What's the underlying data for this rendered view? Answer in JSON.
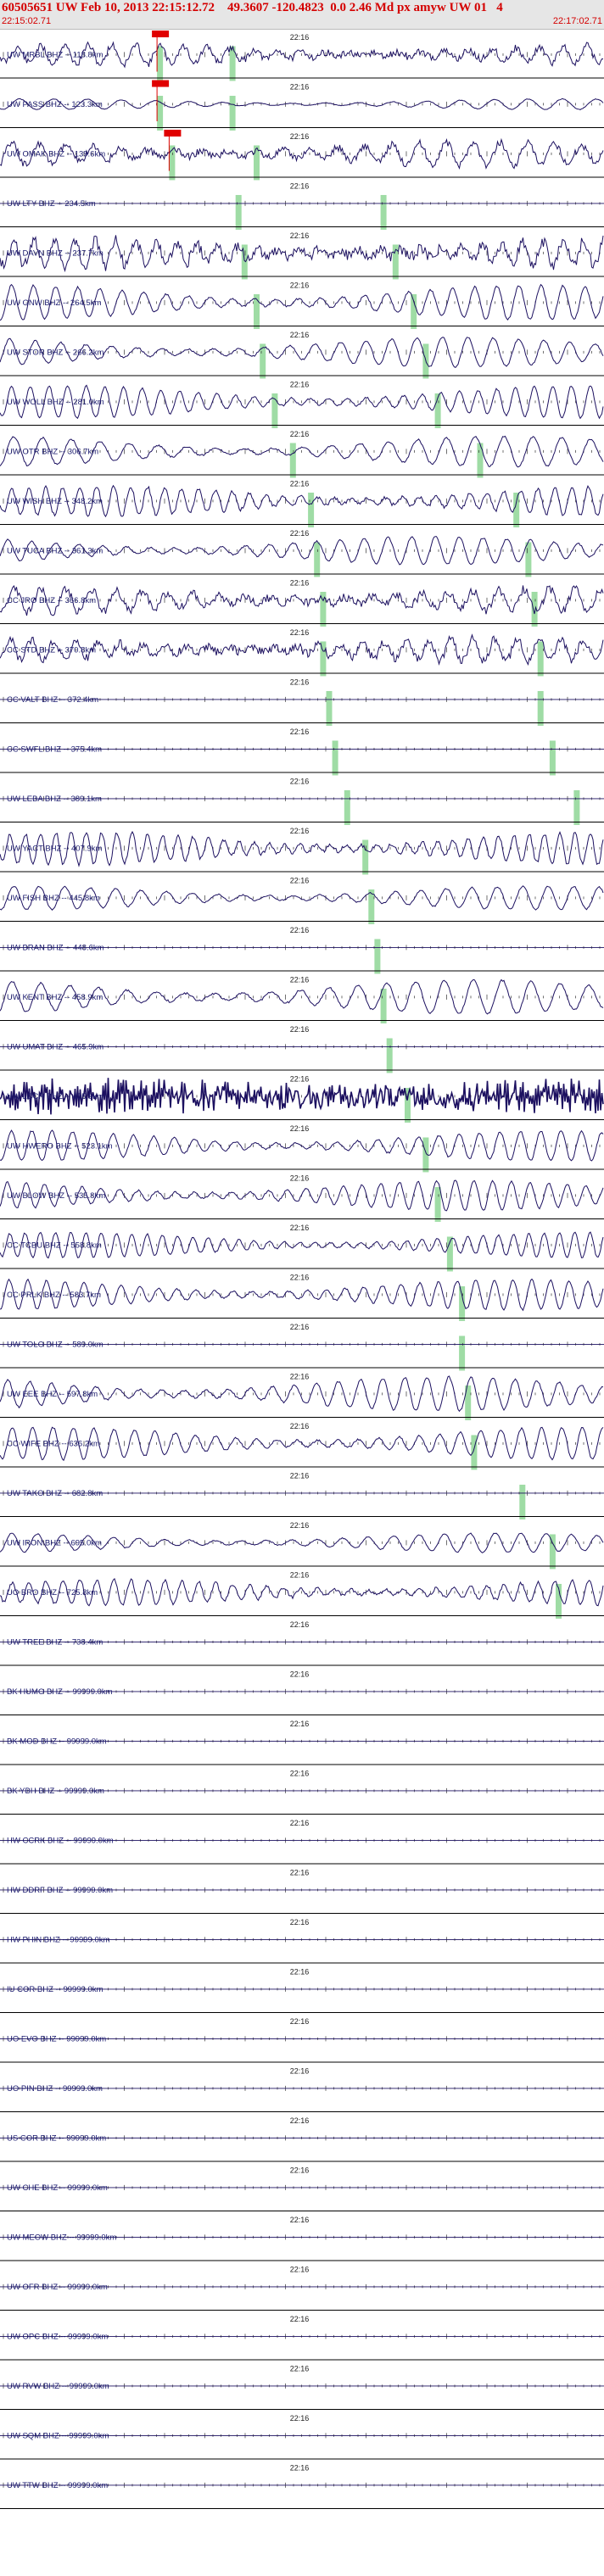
{
  "header": {
    "title": "60505651 UW Feb 10, 2013 22:15:12.72    49.3607 -120.4823  0.0 2.46 Md px amyw UW 01   4",
    "start_time": "22:15:02.71",
    "end_time": "22:17:02.71"
  },
  "time_tick_label": "22:16",
  "colors": {
    "header_text": "#d40000",
    "trace": "#1c1060",
    "pick_band": "#9fdca5",
    "pick_marker": "#e00000",
    "separator": "#000000"
  },
  "traces": [
    {
      "label": "UW MRBL BHZ -- 118.8km",
      "amp": 0.45,
      "period": 28,
      "noise": 0.6,
      "phase": 0.2,
      "picks": [
        0.26,
        0.38
      ]
    },
    {
      "label": "UW PASS BHZ -- 123.3km",
      "amp": 0.25,
      "period": 40,
      "noise": 0.1,
      "phase": 1.1,
      "picks": [
        0.26,
        0.38
      ]
    },
    {
      "label": "UW OMAK BHZ -- 139.6km",
      "amp": 0.55,
      "period": 32,
      "noise": 0.5,
      "phase": 2.0,
      "picks": [
        0.28,
        0.42
      ]
    },
    {
      "label": "UW LTY BHZ -- 234.5km",
      "amp": 0.0,
      "period": 40,
      "noise": 0.0,
      "phase": 0.0,
      "picks": [
        0.39,
        0.63
      ]
    },
    {
      "label": "UW DAVN BHZ -- 237.7km",
      "amp": 0.6,
      "period": 24,
      "noise": 0.7,
      "phase": 0.5,
      "picks": [
        0.4,
        0.65
      ]
    },
    {
      "label": "UW GNW BHZ -- 264.5km",
      "amp": 0.8,
      "period": 26,
      "noise": 0.1,
      "phase": 1.4,
      "picks": [
        0.42,
        0.68
      ]
    },
    {
      "label": "UW STOR BHZ -- 266.2km",
      "amp": 0.7,
      "period": 30,
      "noise": 0.1,
      "phase": 2.3,
      "picks": [
        0.43,
        0.7
      ]
    },
    {
      "label": "UW WOLL BHZ -- 281.0km",
      "amp": 0.75,
      "period": 22,
      "noise": 0.1,
      "phase": 0.8,
      "picks": [
        0.45,
        0.72
      ]
    },
    {
      "label": "UW OTR BHZ -- 306.7km",
      "amp": 0.7,
      "period": 34,
      "noise": 0.1,
      "phase": 1.7,
      "picks": [
        0.48,
        0.79
      ]
    },
    {
      "label": "UW WISH BHZ -- 348.2km",
      "amp": 0.7,
      "period": 20,
      "noise": 0.2,
      "phase": 0.3,
      "picks": [
        0.51,
        0.85
      ]
    },
    {
      "label": "UW TUCA BHZ -- 361.3km",
      "amp": 0.65,
      "period": 28,
      "noise": 0.1,
      "phase": 2.6,
      "picks": [
        0.52,
        0.87
      ]
    },
    {
      "label": "CC JRO BHZ -- 366.8km",
      "amp": 0.55,
      "period": 30,
      "noise": 0.6,
      "phase": 1.0,
      "picks": [
        0.53,
        0.88
      ]
    },
    {
      "label": "CC STD BHZ -- 370.8km",
      "amp": 0.55,
      "period": 26,
      "noise": 0.6,
      "phase": 1.9,
      "picks": [
        0.53,
        0.89
      ]
    },
    {
      "label": "CC VALT BHZ -- 372.4km",
      "amp": 0.0,
      "period": 40,
      "noise": 0.0,
      "phase": 0.0,
      "picks": [
        0.54,
        0.89
      ]
    },
    {
      "label": "CC SWFL BHZ -- 375.4km",
      "amp": 0.0,
      "period": 40,
      "noise": 0.0,
      "phase": 0.0,
      "picks": [
        0.55,
        0.91
      ]
    },
    {
      "label": "UW LEBA BHZ -- 389.1km",
      "amp": 0.0,
      "period": 40,
      "noise": 0.0,
      "phase": 0.0,
      "picks": [
        0.57,
        0.95
      ]
    },
    {
      "label": "UW YACT BHZ -- 407.9km",
      "amp": 0.75,
      "period": 18,
      "noise": 0.2,
      "phase": 0.6,
      "picks": [
        0.6
      ]
    },
    {
      "label": "UW FISH BHZ -- 445.8km",
      "amp": 0.55,
      "period": 30,
      "noise": 0.1,
      "phase": 1.3,
      "picks": [
        0.61
      ]
    },
    {
      "label": "UW BRAN BHZ -- 448.6km",
      "amp": 0.0,
      "period": 40,
      "noise": 0.0,
      "phase": 0.0,
      "picks": [
        0.62
      ]
    },
    {
      "label": "UW KENT BHZ -- 458.9km",
      "amp": 0.8,
      "period": 34,
      "noise": 0.1,
      "phase": 2.1,
      "picks": [
        0.63
      ]
    },
    {
      "label": "UW UMAT BHZ -- 465.9km",
      "amp": 0.0,
      "period": 40,
      "noise": 0.0,
      "phase": 0.0,
      "picks": [
        0.64
      ]
    },
    {
      "label": "UW LCCR BHZ -- 495.9km",
      "amp": 0.95,
      "period": 3,
      "noise": 0.9,
      "phase": 0.4,
      "picks": [
        0.67
      ]
    },
    {
      "label": "UW HWERO BHZ -- 523.1km",
      "amp": 0.7,
      "period": 24,
      "noise": 0.1,
      "phase": 1.2,
      "picks": [
        0.7
      ]
    },
    {
      "label": "UW BLOW BHZ -- 535.8km",
      "amp": 0.7,
      "period": 22,
      "noise": 0.1,
      "phase": 2.2,
      "picks": [
        0.72
      ]
    },
    {
      "label": "CC TCBU BHZ -- 558.8km",
      "amp": 0.6,
      "period": 18,
      "noise": 0.1,
      "phase": 0.7,
      "picks": [
        0.74
      ]
    },
    {
      "label": "CC PRLK BHZ -- 583.7km",
      "amp": 0.7,
      "period": 22,
      "noise": 0.1,
      "phase": 1.6,
      "picks": [
        0.76
      ]
    },
    {
      "label": "UW TOLO BHZ -- 589.0km",
      "amp": 0.0,
      "period": 40,
      "noise": 0.0,
      "phase": 0.0,
      "picks": [
        0.76
      ]
    },
    {
      "label": "UW EEE BHZ -- 597.8km",
      "amp": 0.8,
      "period": 26,
      "noise": 0.1,
      "phase": 2.5,
      "picks": [
        0.77
      ]
    },
    {
      "label": "CC WIFE BHZ -- 636.2km",
      "amp": 0.75,
      "period": 24,
      "noise": 0.1,
      "phase": 0.9,
      "picks": [
        0.78
      ]
    },
    {
      "label": "UW TAKO BHZ -- 682.8km",
      "amp": 0.0,
      "period": 40,
      "noise": 0.0,
      "phase": 0.0,
      "picks": [
        0.86
      ]
    },
    {
      "label": "UW IRON BHZ -- 695.0km",
      "amp": 0.45,
      "period": 30,
      "noise": 0.1,
      "phase": 1.8,
      "picks": [
        0.91
      ]
    },
    {
      "label": "UO BRO BHZ -- 725.8km",
      "amp": 0.6,
      "period": 20,
      "noise": 0.2,
      "phase": 0.2,
      "picks": [
        0.92
      ]
    },
    {
      "label": "UW TREE BHZ -- 738.4km",
      "amp": 0.0,
      "period": 40,
      "noise": 0.0,
      "phase": 0.0,
      "picks": []
    },
    {
      "label": "BK HUMO BHZ -- 99999.0km",
      "amp": 0.0,
      "period": 40,
      "noise": 0.0,
      "phase": 0.0,
      "picks": []
    },
    {
      "label": "BK MOD BHZ -- 99999.0km",
      "amp": 0.0,
      "period": 40,
      "noise": 0.0,
      "phase": 0.0,
      "picks": []
    },
    {
      "label": "BK YBH BHZ -- 99999.0km",
      "amp": 0.0,
      "period": 40,
      "noise": 0.0,
      "phase": 0.0,
      "picks": []
    },
    {
      "label": "HW CCRK BHZ -- 99999.0km",
      "amp": 0.0,
      "period": 40,
      "noise": 0.0,
      "phase": 0.0,
      "picks": []
    },
    {
      "label": "HW DDRF BHZ -- 99999.0km",
      "amp": 0.0,
      "period": 40,
      "noise": 0.0,
      "phase": 0.0,
      "picks": []
    },
    {
      "label": "HW PHIN BHZ -- 99999.0km",
      "amp": 0.0,
      "period": 40,
      "noise": 0.0,
      "phase": 0.0,
      "picks": []
    },
    {
      "label": "IU COR BHZ -- 99999.0km",
      "amp": 0.0,
      "period": 40,
      "noise": 0.0,
      "phase": 0.0,
      "picks": []
    },
    {
      "label": "UO EVO BHZ -- 99999.0km",
      "amp": 0.0,
      "period": 40,
      "noise": 0.0,
      "phase": 0.0,
      "picks": []
    },
    {
      "label": "UO PIN BHZ -- 99999.0km",
      "amp": 0.0,
      "period": 40,
      "noise": 0.0,
      "phase": 0.0,
      "picks": []
    },
    {
      "label": "US COR BHZ -- 99999.0km",
      "amp": 0.0,
      "period": 40,
      "noise": 0.0,
      "phase": 0.0,
      "picks": []
    },
    {
      "label": "UW CHE BHZ -- 99999.0km",
      "amp": 0.0,
      "period": 40,
      "noise": 0.0,
      "phase": 0.0,
      "picks": []
    },
    {
      "label": "UW MEOW BHZ -- 99999.0km",
      "amp": 0.0,
      "period": 40,
      "noise": 0.0,
      "phase": 0.0,
      "picks": []
    },
    {
      "label": "UW OFR BHZ -- 99999.0km",
      "amp": 0.0,
      "period": 40,
      "noise": 0.0,
      "phase": 0.0,
      "picks": []
    },
    {
      "label": "UW OPC BHZ -- 99999.0km",
      "amp": 0.0,
      "period": 40,
      "noise": 0.0,
      "phase": 0.0,
      "picks": []
    },
    {
      "label": "UW RVW BHZ -- 99999.0km",
      "amp": 0.0,
      "period": 40,
      "noise": 0.0,
      "phase": 0.0,
      "picks": []
    },
    {
      "label": "UW SQM BHZ -- 99999.0km",
      "amp": 0.0,
      "period": 40,
      "noise": 0.0,
      "phase": 0.0,
      "picks": []
    },
    {
      "label": "UW TTW BHZ -- 99999.0km",
      "amp": 0.0,
      "period": 40,
      "noise": 0.0,
      "phase": 0.0,
      "picks": []
    }
  ]
}
